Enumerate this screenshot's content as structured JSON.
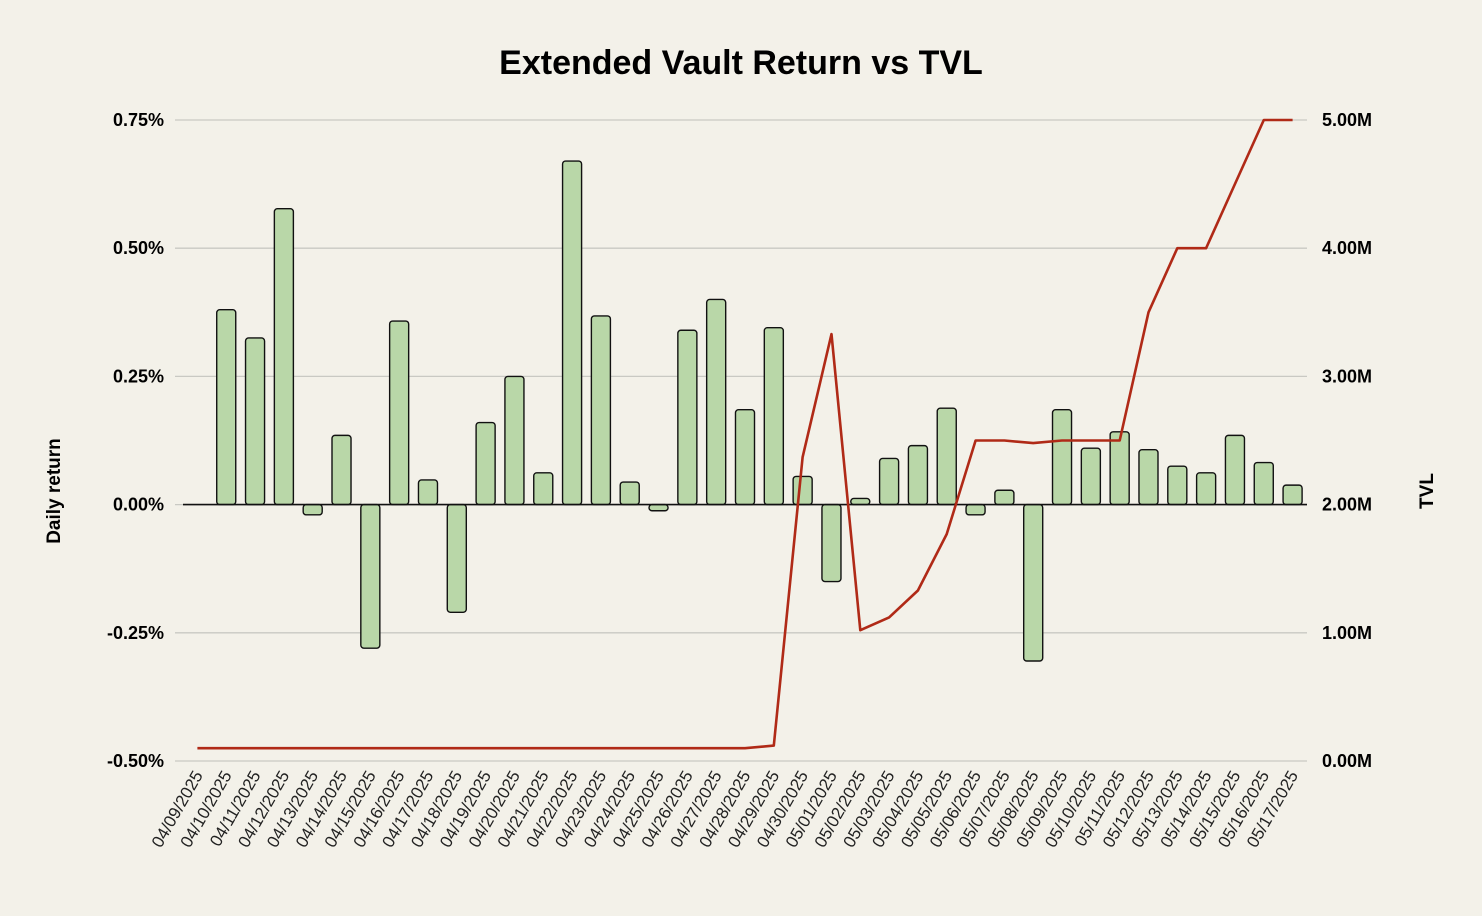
{
  "chart_data": {
    "type": "bar+line",
    "title": "Extended Vault Return vs TVL",
    "ylabel_left": "Daily return",
    "ylabel_right": "TVL",
    "ylim_left": [
      -0.5,
      0.75
    ],
    "ylim_right": [
      0,
      5
    ],
    "yticks_left": [
      "0.75%",
      "0.50%",
      "0.25%",
      "0.00%",
      "-0.25%",
      "-0.50%"
    ],
    "yticks_right": [
      "5.00M",
      "4.00M",
      "3.00M",
      "2.00M",
      "1.00M",
      "0.00M"
    ],
    "yticks_left_values": [
      0.75,
      0.5,
      0.25,
      0,
      -0.25,
      -0.5
    ],
    "yticks_right_values": [
      5,
      4,
      3,
      2,
      1,
      0
    ],
    "categories": [
      "04/09/2025",
      "04/10/2025",
      "04/11/2025",
      "04/12/2025",
      "04/13/2025",
      "04/14/2025",
      "04/15/2025",
      "04/16/2025",
      "04/17/2025",
      "04/18/2025",
      "04/19/2025",
      "04/20/2025",
      "04/21/2025",
      "04/22/2025",
      "04/23/2025",
      "04/24/2025",
      "04/25/2025",
      "04/26/2025",
      "04/27/2025",
      "04/28/2025",
      "04/29/2025",
      "04/30/2025",
      "05/01/2025",
      "05/02/2025",
      "05/03/2025",
      "05/04/2025",
      "05/05/2025",
      "05/06/2025",
      "05/07/2025",
      "05/08/2025",
      "05/09/2025",
      "05/10/2025",
      "05/11/2025",
      "05/12/2025",
      "05/13/2025",
      "05/14/2025",
      "05/15/2025",
      "05/16/2025",
      "05/17/2025"
    ],
    "series": [
      {
        "name": "Daily return",
        "kind": "bar",
        "unit": "%",
        "color": "#b9d7a8",
        "values": [
          0.0,
          0.38,
          0.325,
          0.577,
          -0.02,
          0.135,
          -0.28,
          0.358,
          0.048,
          -0.21,
          0.16,
          0.25,
          0.062,
          0.67,
          0.368,
          0.044,
          -0.012,
          0.34,
          0.4,
          0.185,
          0.345,
          0.055,
          -0.15,
          0.012,
          0.09,
          0.115,
          0.188,
          -0.02,
          0.028,
          -0.305,
          0.185,
          0.11,
          0.142,
          0.107,
          0.075,
          0.062,
          0.135,
          0.082,
          0.038
        ]
      },
      {
        "name": "TVL",
        "kind": "line",
        "unit": "M",
        "color": "#b02a17",
        "values": [
          0.1,
          0.1,
          0.1,
          0.1,
          0.1,
          0.1,
          0.1,
          0.1,
          0.1,
          0.1,
          0.1,
          0.1,
          0.1,
          0.1,
          0.1,
          0.1,
          0.1,
          0.1,
          0.1,
          0.1,
          0.12,
          2.37,
          3.33,
          1.02,
          1.12,
          1.33,
          1.77,
          2.5,
          2.5,
          2.48,
          2.5,
          2.5,
          2.5,
          3.5,
          4.0,
          4.0,
          4.5,
          5.0,
          5.0
        ]
      }
    ],
    "legend": "none",
    "grid": true
  }
}
